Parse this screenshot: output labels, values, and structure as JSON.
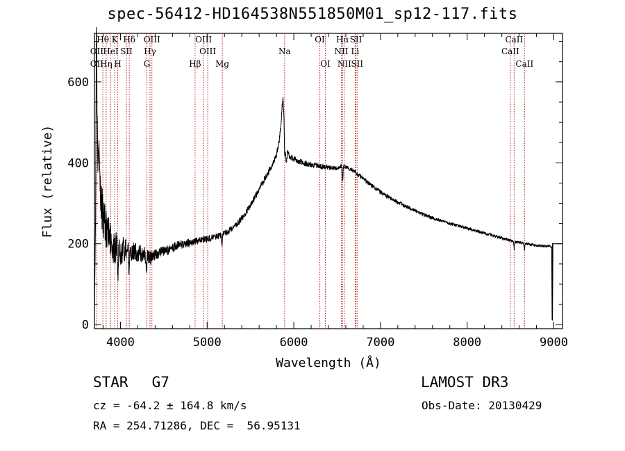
{
  "chart_data": {
    "type": "line",
    "title": "spec-56412-HD164538N551850M01_sp12-117.fits",
    "xlabel": "Wavelength (Å)",
    "ylabel": "Flux (relative)",
    "xlim": [
      3700,
      9100
    ],
    "ylim": [
      -10,
      720
    ],
    "xticks": [
      "4000",
      "5000",
      "6000",
      "7000",
      "8000",
      "9000"
    ],
    "xtick_values": [
      4000,
      5000,
      6000,
      7000,
      8000,
      9000
    ],
    "yticks": [
      "0",
      "200",
      "400",
      "600"
    ],
    "ytick_values": [
      0,
      200,
      400,
      600
    ],
    "line_color": "#000000",
    "marker_color": "#b22222",
    "continuum": [
      [
        3700,
        0
      ],
      [
        3712,
        180
      ],
      [
        3718,
        600
      ],
      [
        3725,
        700
      ],
      [
        3732,
        480
      ],
      [
        3740,
        420
      ],
      [
        3750,
        470
      ],
      [
        3760,
        330
      ],
      [
        3780,
        300
      ],
      [
        3800,
        270
      ],
      [
        3830,
        240
      ],
      [
        3860,
        220
      ],
      [
        3900,
        200
      ],
      [
        3950,
        190
      ],
      [
        4000,
        175
      ],
      [
        4050,
        190
      ],
      [
        4100,
        185
      ],
      [
        4150,
        180
      ],
      [
        4200,
        178
      ],
      [
        4250,
        175
      ],
      [
        4300,
        170
      ],
      [
        4350,
        165
      ],
      [
        4400,
        172
      ],
      [
        4450,
        178
      ],
      [
        4500,
        182
      ],
      [
        4550,
        185
      ],
      [
        4600,
        190
      ],
      [
        4650,
        195
      ],
      [
        4700,
        198
      ],
      [
        4750,
        200
      ],
      [
        4800,
        203
      ],
      [
        4850,
        205
      ],
      [
        4900,
        207
      ],
      [
        4950,
        210
      ],
      [
        5000,
        212
      ],
      [
        5050,
        215
      ],
      [
        5100,
        218
      ],
      [
        5150,
        220
      ],
      [
        5200,
        225
      ],
      [
        5250,
        232
      ],
      [
        5300,
        240
      ],
      [
        5350,
        250
      ],
      [
        5400,
        262
      ],
      [
        5450,
        278
      ],
      [
        5500,
        295
      ],
      [
        5550,
        315
      ],
      [
        5600,
        335
      ],
      [
        5650,
        355
      ],
      [
        5700,
        375
      ],
      [
        5750,
        395
      ],
      [
        5800,
        420
      ],
      [
        5830,
        450
      ],
      [
        5850,
        490
      ],
      [
        5865,
        540
      ],
      [
        5875,
        555
      ],
      [
        5885,
        530
      ],
      [
        5895,
        470
      ],
      [
        5905,
        420
      ],
      [
        5915,
        400
      ],
      [
        5930,
        430
      ],
      [
        5950,
        415
      ],
      [
        6000,
        410
      ],
      [
        6050,
        405
      ],
      [
        6100,
        400
      ],
      [
        6150,
        398
      ],
      [
        6200,
        396
      ],
      [
        6250,
        394
      ],
      [
        6300,
        392
      ],
      [
        6350,
        390
      ],
      [
        6400,
        388
      ],
      [
        6450,
        386
      ],
      [
        6500,
        388
      ],
      [
        6550,
        392
      ],
      [
        6600,
        390
      ],
      [
        6650,
        385
      ],
      [
        6700,
        378
      ],
      [
        6750,
        370
      ],
      [
        6800,
        360
      ],
      [
        6850,
        352
      ],
      [
        6900,
        344
      ],
      [
        6950,
        336
      ],
      [
        7000,
        328
      ],
      [
        7100,
        314
      ],
      [
        7200,
        302
      ],
      [
        7300,
        292
      ],
      [
        7400,
        282
      ],
      [
        7500,
        272
      ],
      [
        7600,
        264
      ],
      [
        7700,
        257
      ],
      [
        7800,
        250
      ],
      [
        7900,
        244
      ],
      [
        8000,
        238
      ],
      [
        8100,
        232
      ],
      [
        8200,
        226
      ],
      [
        8300,
        220
      ],
      [
        8400,
        214
      ],
      [
        8500,
        208
      ],
      [
        8600,
        203
      ],
      [
        8700,
        199
      ],
      [
        8800,
        196
      ],
      [
        8900,
        194
      ],
      [
        8960,
        195
      ],
      [
        8975,
        190
      ],
      [
        8980,
        10
      ],
      [
        8985,
        200
      ],
      [
        9100,
        200
      ]
    ],
    "noise": [
      [
        3700,
        60
      ],
      [
        3900,
        45
      ],
      [
        4100,
        28
      ],
      [
        4400,
        14
      ],
      [
        5000,
        8
      ],
      [
        5800,
        8
      ],
      [
        6500,
        6
      ],
      [
        7500,
        4
      ],
      [
        9000,
        3
      ]
    ],
    "dips": [
      {
        "x": 3970,
        "depth": 90
      },
      {
        "x": 4101,
        "depth": 70
      },
      {
        "x": 4300,
        "depth": 40
      },
      {
        "x": 5170,
        "depth": 30
      },
      {
        "x": 5895,
        "depth": 60
      },
      {
        "x": 6563,
        "depth": 45
      },
      {
        "x": 8542,
        "depth": 20
      },
      {
        "x": 8662,
        "depth": 20
      }
    ],
    "line_markers": [
      {
        "label": "Hθ",
        "x": 3797,
        "row": 0
      },
      {
        "label": "OII",
        "x": 3727,
        "row": 1
      },
      {
        "label": "OII",
        "x": 3727,
        "row": 2
      },
      {
        "label": "K",
        "x": 3934,
        "row": 0
      },
      {
        "label": "HeI",
        "x": 3889,
        "row": 1
      },
      {
        "label": "Hη",
        "x": 3835,
        "row": 2
      },
      {
        "label": "SII",
        "x": 4069,
        "row": 1
      },
      {
        "label": "H",
        "x": 3969,
        "row": 2
      },
      {
        "label": "Hδ",
        "x": 4102,
        "row": 0
      },
      {
        "label": "OIII",
        "x": 4363,
        "row": 0
      },
      {
        "label": "Hγ",
        "x": 4341,
        "row": 1
      },
      {
        "label": "G",
        "x": 4305,
        "row": 2
      },
      {
        "label": "OIII",
        "x": 4959,
        "row": 0
      },
      {
        "label": "OIII",
        "x": 5007,
        "row": 1
      },
      {
        "label": "Hβ",
        "x": 4861,
        "row": 2
      },
      {
        "label": "Mg",
        "x": 5175,
        "row": 2
      },
      {
        "label": "Na",
        "x": 5894,
        "row": 1
      },
      {
        "label": "OI",
        "x": 6300,
        "row": 0
      },
      {
        "label": "OI",
        "x": 6364,
        "row": 2
      },
      {
        "label": "Hα",
        "x": 6563,
        "row": 0
      },
      {
        "label": "NII",
        "x": 6548,
        "row": 1
      },
      {
        "label": "NII",
        "x": 6583,
        "row": 2
      },
      {
        "label": "SII",
        "x": 6717,
        "row": 0
      },
      {
        "label": "Li",
        "x": 6708,
        "row": 1
      },
      {
        "label": "SII",
        "x": 6731,
        "row": 2
      },
      {
        "label": "CaII",
        "x": 8542,
        "row": 0
      },
      {
        "label": "CaII",
        "x": 8498,
        "row": 1
      },
      {
        "label": "CaII",
        "x": 8662,
        "row": 2
      }
    ]
  },
  "info": {
    "class": "STAR",
    "subclass": "G7",
    "survey": "LAMOST DR3",
    "cz": "cz = -64.2 ± 164.8 km/s",
    "obs_date": "Obs-Date: 20130429",
    "radec": "RA = 254.71286, DEC =  56.95131"
  }
}
